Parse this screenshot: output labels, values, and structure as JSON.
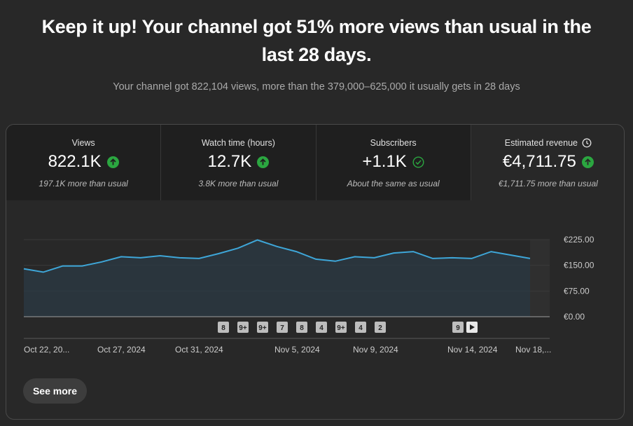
{
  "headline": "Keep it up! Your channel got 51% more views than usual in the last 28 days.",
  "subline": "Your channel got 822,104 views, more than the 379,000–625,000 it usually gets in 28 days",
  "metrics": [
    {
      "label": "Views",
      "value": "822.1K",
      "note": "197.1K more than usual",
      "indicator": "arrow-up-icon"
    },
    {
      "label": "Watch time (hours)",
      "value": "12.7K",
      "note": "3.8K more than usual",
      "indicator": "arrow-up-icon"
    },
    {
      "label": "Subscribers",
      "value": "+1.1K",
      "note": "About the same as usual",
      "indicator": "check-circle-icon"
    },
    {
      "label": "Estimated revenue",
      "value": "€4,711.75",
      "note": "€1,711.75 more than usual",
      "indicator": "arrow-up-icon",
      "label_icon": "clock-icon"
    }
  ],
  "colors": {
    "line": "#3ea6d8",
    "up": "#2ba640",
    "check": "#2ba640"
  },
  "chart_data": {
    "type": "area",
    "y_ticks": [
      "€225.00",
      "€150.00",
      "€75.00",
      "€0.00"
    ],
    "ylim": [
      0,
      225
    ],
    "x_tick_labels": [
      "Oct 22, 20...",
      "Oct 27, 2024",
      "Oct 31, 2024",
      "Nov 5, 2024",
      "Nov 9, 2024",
      "Nov 14, 2024",
      "Nov 18,..."
    ],
    "series": [
      {
        "values": [
          140,
          130,
          148,
          148,
          160,
          175,
          172,
          178,
          172,
          170,
          184,
          200,
          224,
          205,
          190,
          168,
          162,
          175,
          172,
          186,
          190,
          170,
          172,
          170,
          190,
          180,
          170
        ]
      }
    ],
    "markers": [
      "8",
      "9+",
      "9+",
      "7",
      "8",
      "4",
      "9+",
      "4",
      "2",
      "9"
    ],
    "grid": true
  },
  "see_more": "See more"
}
